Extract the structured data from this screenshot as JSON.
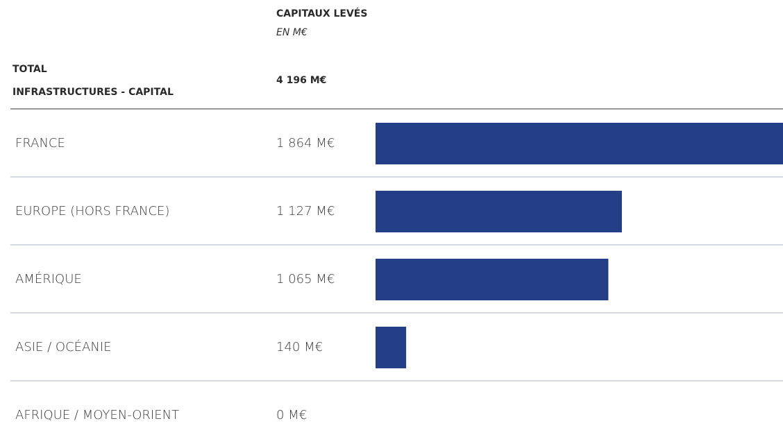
{
  "chart_data": {
    "type": "bar",
    "column_title": "CAPITAUX LEVÉS",
    "column_subtitle": "EN M€",
    "total_title": [
      "TOTAL",
      "INFRASTRUCTURES - CAPITAL"
    ],
    "total": 4196,
    "total_label": "4 196 M€",
    "categories": [
      "FRANCE",
      "EUROPE (HORS FRANCE)",
      "AMÉRIQUE",
      "ASIE / OCÉANIE",
      "AFRIQUE / MOYEN-ORIENT"
    ],
    "values": [
      1864,
      1127,
      1065,
      140,
      0
    ],
    "value_labels": [
      "1 864 M€",
      "1 127 M€",
      "1 065 M€",
      "140 M€",
      "0 M€"
    ],
    "color": "#233f87"
  }
}
